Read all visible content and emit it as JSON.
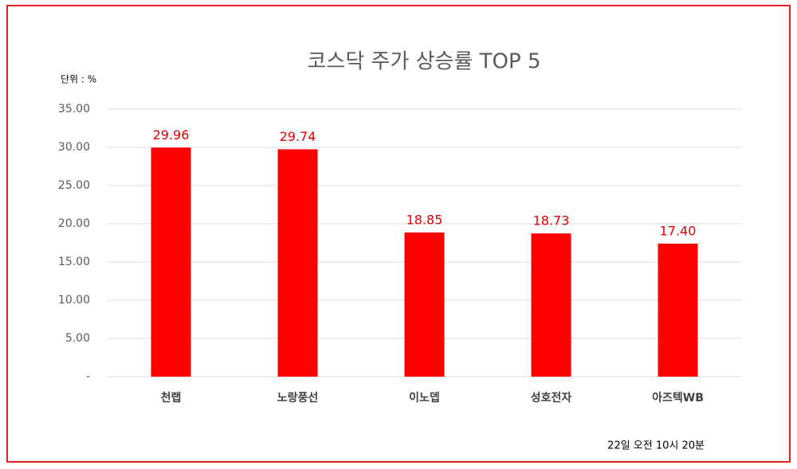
{
  "chart_data": {
    "type": "bar",
    "title": "코스닥 주가 상승률 TOP 5",
    "unit_label": "단위 : %",
    "categories": [
      "천랩",
      "노랑풍선",
      "이노뎁",
      "성호전자",
      "아즈텍WB"
    ],
    "values": [
      29.96,
      29.74,
      18.85,
      18.73,
      17.4
    ],
    "value_labels": [
      "29.96",
      "29.74",
      "18.85",
      "18.73",
      "17.40"
    ],
    "color": "#ff0000",
    "ylim": [
      0,
      35
    ],
    "yticks": [
      {
        "value": 0,
        "label": "-"
      },
      {
        "value": 5,
        "label": "5.00"
      },
      {
        "value": 10,
        "label": "10.00"
      },
      {
        "value": 15,
        "label": "15.00"
      },
      {
        "value": 20,
        "label": "20.00"
      },
      {
        "value": 25,
        "label": "25.00"
      },
      {
        "value": 30,
        "label": "30.00"
      },
      {
        "value": 35,
        "label": "35.00"
      }
    ],
    "grid": true,
    "footnote": "22일 오전 10시 20분"
  }
}
